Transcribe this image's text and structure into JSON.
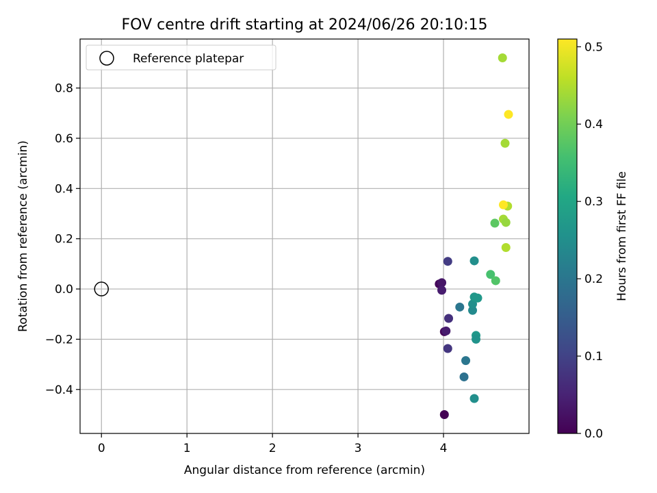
{
  "chart_data": {
    "type": "scatter",
    "title": "FOV centre drift starting at 2024/06/26 20:10:15",
    "xlabel": "Angular distance from reference (arcmin)",
    "ylabel": "Rotation from reference (arcmin)",
    "xlim": [
      -0.25,
      5.0
    ],
    "ylim": [
      -0.575,
      0.995
    ],
    "xticks": [
      0,
      1,
      2,
      3,
      4
    ],
    "yticks": [
      -0.4,
      -0.2,
      0.0,
      0.2,
      0.4,
      0.6,
      0.8
    ],
    "xtick_labels": [
      "0",
      "1",
      "2",
      "3",
      "4"
    ],
    "ytick_labels": [
      "−0.4",
      "−0.2",
      "0.0",
      "0.2",
      "0.4",
      "0.6",
      "0.8"
    ],
    "grid": true,
    "legend": {
      "placement": "top-left",
      "entries": [
        {
          "label": "Reference platepar",
          "marker": "open-circle"
        }
      ]
    },
    "reference_point": {
      "x": 0.0,
      "y": 0.0
    },
    "colorbar": {
      "label": "Hours from first FF file",
      "colormap": "viridis",
      "range": [
        0.0,
        0.51
      ],
      "ticks": [
        0.0,
        0.1,
        0.2,
        0.3,
        0.4,
        0.5
      ],
      "tick_labels": [
        "0.0",
        "0.1",
        "0.2",
        "0.3",
        "0.4",
        "0.5"
      ]
    },
    "points": [
      {
        "x": 4.01,
        "y": -0.5,
        "c": 0.0
      },
      {
        "x": 3.95,
        "y": 0.02,
        "c": 0.01
      },
      {
        "x": 4.01,
        "y": -0.17,
        "c": 0.01
      },
      {
        "x": 3.98,
        "y": 0.025,
        "c": 0.03
      },
      {
        "x": 3.98,
        "y": -0.005,
        "c": 0.04
      },
      {
        "x": 4.03,
        "y": -0.167,
        "c": 0.04
      },
      {
        "x": 4.06,
        "y": -0.117,
        "c": 0.07
      },
      {
        "x": 4.05,
        "y": -0.237,
        "c": 0.08
      },
      {
        "x": 4.05,
        "y": 0.11,
        "c": 0.09
      },
      {
        "x": 4.24,
        "y": -0.35,
        "c": 0.19
      },
      {
        "x": 4.26,
        "y": -0.285,
        "c": 0.2
      },
      {
        "x": 4.19,
        "y": -0.072,
        "c": 0.2
      },
      {
        "x": 4.36,
        "y": 0.112,
        "c": 0.25
      },
      {
        "x": 4.34,
        "y": -0.085,
        "c": 0.24
      },
      {
        "x": 4.34,
        "y": -0.06,
        "c": 0.25
      },
      {
        "x": 4.36,
        "y": -0.032,
        "c": 0.27
      },
      {
        "x": 4.4,
        "y": -0.036,
        "c": 0.27
      },
      {
        "x": 4.38,
        "y": -0.185,
        "c": 0.27
      },
      {
        "x": 4.38,
        "y": -0.2,
        "c": 0.26
      },
      {
        "x": 4.36,
        "y": -0.436,
        "c": 0.25
      },
      {
        "x": 4.55,
        "y": 0.058,
        "c": 0.36
      },
      {
        "x": 4.61,
        "y": 0.033,
        "c": 0.37
      },
      {
        "x": 4.6,
        "y": 0.262,
        "c": 0.38
      },
      {
        "x": 4.69,
        "y": 0.92,
        "c": 0.44
      },
      {
        "x": 4.72,
        "y": 0.58,
        "c": 0.44
      },
      {
        "x": 4.7,
        "y": 0.278,
        "c": 0.44
      },
      {
        "x": 4.73,
        "y": 0.265,
        "c": 0.43
      },
      {
        "x": 4.75,
        "y": 0.33,
        "c": 0.45
      },
      {
        "x": 4.73,
        "y": 0.165,
        "c": 0.45
      },
      {
        "x": 4.7,
        "y": 0.335,
        "c": 0.51
      },
      {
        "x": 4.76,
        "y": 0.695,
        "c": 0.51
      }
    ]
  }
}
